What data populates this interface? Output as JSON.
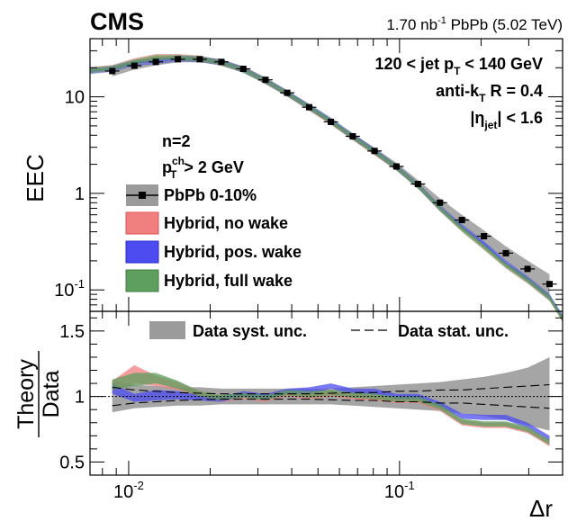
{
  "header": {
    "experiment": "CMS",
    "lumi_value": "1.70 nb",
    "lumi_exp": "-1",
    "lumi_rest": " PbPb (5.02 TeV)"
  },
  "selection": {
    "jetpt_pre": "120 < jet p",
    "jetpt_sub": "T",
    "jetpt_post": " < 140 GeV",
    "algo_pre": "anti-k",
    "algo_sub": "T",
    "algo_post": " R = 0.4",
    "eta_pre": "|η",
    "eta_sub": "jet",
    "eta_post": "| < 1.6",
    "n_label": "n=2",
    "trk_pre": "p",
    "trk_sup": "ch",
    "trk_sub": "T",
    "trk_post": " > 2 GeV"
  },
  "colors": {
    "no_wake": "#f07f7f",
    "pos_wake": "#4c4cf0",
    "full_wake": "#5e9e5e",
    "data_syst": "#9b9b9b",
    "data_marker": "#000000"
  },
  "chart_data": [
    {
      "type": "line",
      "panel": "top",
      "ylabel": "EEC",
      "xlabel": "Δr",
      "xscale": "log",
      "yscale": "log",
      "xlim": [
        0.0072,
        0.4
      ],
      "ylim": [
        0.06,
        40
      ],
      "x_ticks": [
        {
          "v": 0.01,
          "base": "10",
          "exp": "-2"
        },
        {
          "v": 0.1,
          "base": "10",
          "exp": "-1"
        }
      ],
      "y_ticks": [
        {
          "v": 0.1,
          "label": "10",
          "exp": "-1"
        },
        {
          "v": 1,
          "label": "1",
          "exp": ""
        },
        {
          "v": 10,
          "label": "10",
          "exp": ""
        }
      ],
      "legend": [
        {
          "label": "PbPb 0-10%",
          "kind": "data"
        },
        {
          "label": "Hybrid, no wake",
          "kind": "no_wake"
        },
        {
          "label": "Hybrid, pos. wake",
          "kind": "pos_wake"
        },
        {
          "label": "Hybrid, full wake",
          "kind": "full_wake"
        }
      ],
      "data": {
        "name": "PbPb 0-10%",
        "x": [
          0.0087,
          0.0105,
          0.0126,
          0.0152,
          0.0183,
          0.022,
          0.0265,
          0.032,
          0.0385,
          0.0464,
          0.0558,
          0.0672,
          0.0809,
          0.0974,
          0.117,
          0.141,
          0.17,
          0.205,
          0.247,
          0.297,
          0.358
        ],
        "y": [
          18.5,
          21.0,
          23.0,
          24.5,
          24.5,
          23.0,
          19.5,
          15.0,
          11.0,
          7.8,
          5.5,
          3.9,
          2.75,
          1.9,
          1.25,
          0.8,
          0.53,
          0.36,
          0.24,
          0.165,
          0.115
        ],
        "syst_rel": [
          0.12,
          0.09,
          0.08,
          0.07,
          0.07,
          0.06,
          0.06,
          0.06,
          0.06,
          0.06,
          0.06,
          0.07,
          0.08,
          0.09,
          0.1,
          0.11,
          0.13,
          0.15,
          0.18,
          0.22,
          0.26
        ]
      },
      "series": [
        {
          "name": "Hybrid, no wake",
          "x": [
            0.0072,
            0.0087,
            0.0105,
            0.0126,
            0.0152,
            0.0183,
            0.022,
            0.0265,
            0.032,
            0.0385,
            0.0464,
            0.0558,
            0.0672,
            0.0809,
            0.0974,
            0.117,
            0.141,
            0.17,
            0.205,
            0.247,
            0.297,
            0.358,
            0.4
          ],
          "y": [
            19.0,
            20.0,
            23.5,
            26.0,
            26.0,
            25.0,
            22.5,
            19.2,
            14.5,
            10.8,
            7.7,
            5.5,
            3.8,
            2.65,
            1.85,
            1.2,
            0.7,
            0.43,
            0.28,
            0.18,
            0.125,
            0.082,
            0.05
          ]
        },
        {
          "name": "Hybrid, pos. wake",
          "x": [
            0.0072,
            0.0087,
            0.0105,
            0.0126,
            0.0152,
            0.0183,
            0.022,
            0.0265,
            0.032,
            0.0385,
            0.0464,
            0.0558,
            0.0672,
            0.0809,
            0.0974,
            0.117,
            0.141,
            0.17,
            0.205,
            0.247,
            0.297,
            0.358,
            0.4
          ],
          "y": [
            18.5,
            19.5,
            22.5,
            23.5,
            25.0,
            24.5,
            22.8,
            19.2,
            14.7,
            10.9,
            7.9,
            5.7,
            3.9,
            2.75,
            1.87,
            1.21,
            0.71,
            0.45,
            0.3,
            0.19,
            0.13,
            0.085,
            0.052
          ]
        },
        {
          "name": "Hybrid, full wake",
          "x": [
            0.0072,
            0.0087,
            0.0105,
            0.0126,
            0.0152,
            0.0183,
            0.022,
            0.0265,
            0.032,
            0.0385,
            0.0464,
            0.0558,
            0.0672,
            0.0809,
            0.0974,
            0.117,
            0.141,
            0.17,
            0.205,
            0.247,
            0.297,
            0.358,
            0.4
          ],
          "y": [
            18.8,
            19.8,
            23.0,
            25.5,
            25.5,
            24.8,
            22.6,
            19.0,
            14.6,
            10.8,
            7.8,
            5.6,
            3.85,
            2.7,
            1.86,
            1.2,
            0.7,
            0.43,
            0.28,
            0.18,
            0.126,
            0.083,
            0.05
          ]
        }
      ]
    },
    {
      "type": "area",
      "panel": "bottom",
      "ylabel_num": "Theory",
      "ylabel_den": "Data",
      "xlabel": "Δr",
      "xscale": "log",
      "xlim": [
        0.0072,
        0.4
      ],
      "ylim": [
        0.4,
        1.65
      ],
      "y_ticks": [
        0.5,
        1,
        1.5
      ],
      "reference_line": 1,
      "legend": [
        {
          "label": "Data syst. unc.",
          "kind": "syst"
        },
        {
          "label": "Data stat. unc.",
          "kind": "stat"
        }
      ],
      "x": [
        0.0087,
        0.0105,
        0.0126,
        0.0152,
        0.0183,
        0.022,
        0.0265,
        0.032,
        0.0385,
        0.0464,
        0.0558,
        0.0672,
        0.0809,
        0.0974,
        0.117,
        0.141,
        0.17,
        0.205,
        0.247,
        0.297,
        0.358
      ],
      "syst_band": {
        "lo": [
          0.88,
          0.91,
          0.92,
          0.93,
          0.93,
          0.94,
          0.94,
          0.94,
          0.94,
          0.94,
          0.94,
          0.93,
          0.92,
          0.91,
          0.9,
          0.89,
          0.87,
          0.85,
          0.82,
          0.78,
          0.74
        ],
        "hi": [
          1.12,
          1.09,
          1.08,
          1.07,
          1.07,
          1.06,
          1.06,
          1.06,
          1.06,
          1.06,
          1.06,
          1.07,
          1.08,
          1.09,
          1.1,
          1.11,
          1.13,
          1.15,
          1.18,
          1.22,
          1.3
        ]
      },
      "stat_band": {
        "lo": [
          0.93,
          0.95,
          0.96,
          0.97,
          0.975,
          0.98,
          0.98,
          0.98,
          0.98,
          0.98,
          0.975,
          0.97,
          0.97,
          0.96,
          0.96,
          0.95,
          0.95,
          0.94,
          0.93,
          0.92,
          0.91
        ],
        "hi": [
          1.07,
          1.05,
          1.04,
          1.03,
          1.025,
          1.02,
          1.02,
          1.02,
          1.02,
          1.02,
          1.025,
          1.03,
          1.03,
          1.04,
          1.04,
          1.05,
          1.05,
          1.06,
          1.07,
          1.08,
          1.09
        ]
      },
      "series": [
        {
          "name": "Hybrid, no wake",
          "lo": [
            1.04,
            1.1,
            1.08,
            1.05,
            1.0,
            0.96,
            0.98,
            0.96,
            1.0,
            0.98,
            1.0,
            0.98,
            0.97,
            0.95,
            0.95,
            0.89,
            0.78,
            0.76,
            0.76,
            0.72,
            0.62
          ],
          "hi": [
            1.12,
            1.24,
            1.16,
            1.11,
            1.04,
            1.0,
            1.02,
            1.0,
            1.04,
            1.03,
            1.04,
            1.02,
            1.01,
            0.99,
            0.99,
            0.93,
            0.82,
            0.8,
            0.8,
            0.76,
            0.66
          ]
        },
        {
          "name": "Hybrid, pos. wake",
          "lo": [
            1.02,
            0.96,
            0.97,
            0.98,
            0.97,
            0.96,
            1.0,
            0.98,
            1.02,
            1.02,
            1.06,
            1.02,
            1.02,
            0.98,
            0.98,
            0.92,
            0.83,
            0.82,
            0.82,
            0.76,
            0.66
          ],
          "hi": [
            1.1,
            1.02,
            1.05,
            1.04,
            1.01,
            1.0,
            1.04,
            1.02,
            1.06,
            1.07,
            1.1,
            1.06,
            1.06,
            1.02,
            1.02,
            0.96,
            0.87,
            0.86,
            0.86,
            0.8,
            0.7
          ]
        },
        {
          "name": "Hybrid, full wake",
          "lo": [
            1.05,
            1.08,
            1.1,
            1.06,
            1.0,
            0.97,
            0.99,
            0.97,
            1.01,
            0.99,
            1.01,
            0.99,
            0.98,
            0.96,
            0.96,
            0.9,
            0.79,
            0.77,
            0.77,
            0.73,
            0.63
          ],
          "hi": [
            1.13,
            1.18,
            1.18,
            1.12,
            1.04,
            1.01,
            1.03,
            1.01,
            1.05,
            1.04,
            1.05,
            1.03,
            1.02,
            1.0,
            1.0,
            0.94,
            0.83,
            0.81,
            0.81,
            0.77,
            0.67
          ]
        }
      ]
    }
  ]
}
